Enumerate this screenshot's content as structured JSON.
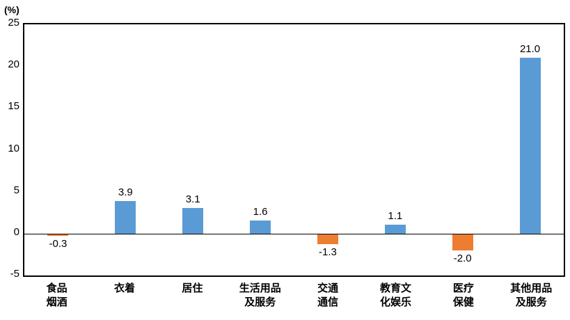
{
  "chart_data": {
    "type": "bar",
    "title": "",
    "unit_label": "(%)",
    "xlabel": "",
    "ylabel": "(%)",
    "categories": [
      "食品\n烟酒",
      "衣着",
      "居住",
      "生活用品\n及服务",
      "交通\n通信",
      "教育文\n化娱乐",
      "医疗\n保健",
      "其他用品\n及服务"
    ],
    "values": [
      -0.3,
      3.9,
      3.1,
      1.6,
      -1.3,
      1.1,
      -2.0,
      21.0
    ],
    "value_labels": [
      "-0.3",
      "3.9",
      "3.1",
      "1.6",
      "-1.3",
      "1.1",
      "-2.0",
      "21.0"
    ],
    "ylim": [
      -5,
      25
    ],
    "yticks": [
      25,
      20,
      15,
      10,
      5,
      0,
      -5
    ],
    "grid": false,
    "legend": false,
    "layout_hint": "single series, positive bars blue, negative bars orange, zero axis line drawn across plot",
    "colors": {
      "positive": "#5B9BD5",
      "negative": "#ED7D31",
      "axis": "#000000",
      "background": "#FFFFFF"
    }
  }
}
